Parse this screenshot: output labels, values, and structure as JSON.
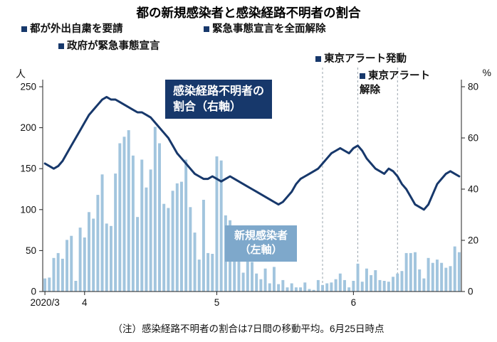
{
  "title": "都の新規感染者と感染経路不明者の割合",
  "note": "（注）感染経路不明者の割合は7日間の移動平均。6月25日時点",
  "annotations": [
    {
      "label": "都が外出自粛を要請"
    },
    {
      "label": "政府が緊急事態宣言"
    },
    {
      "label": "緊急事態宣言を全面解除"
    },
    {
      "label": "東京アラート発動"
    },
    {
      "label": "東京アラート解除"
    }
  ],
  "legend": {
    "line": [
      "感染経路不明者の",
      "割合（右軸）"
    ],
    "bar": [
      "新規感染者",
      "（左軸）"
    ]
  },
  "colors": {
    "bar": "#a2c5de",
    "line": "#17386b",
    "legend_line_bg": "#17386b",
    "legend_bar_bg": "#7ea8cb",
    "axis": "#222222",
    "event_line": "#9aa4ad",
    "bullet": "#17386b"
  },
  "chart_data": {
    "type": "combo",
    "title": "都の新規感染者と感染経路不明者の割合",
    "x_tick_labels": [
      "2020/3",
      "4",
      "5",
      "6"
    ],
    "x_tick_indices": [
      0,
      9,
      39,
      70
    ],
    "left_axis": {
      "unit": "人",
      "min": 0,
      "max": 250,
      "ticks": [
        0,
        50,
        100,
        150,
        200,
        250
      ]
    },
    "right_axis": {
      "unit": "%",
      "min": 0,
      "max": 80,
      "ticks": [
        0,
        20,
        40,
        60,
        80
      ]
    },
    "grid": false,
    "series": [
      {
        "name": "新規感染者（左軸）",
        "type": "bar",
        "axis": "left",
        "values": [
          16,
          17,
          41,
          47,
          40,
          63,
          68,
          13,
          78,
          66,
          97,
          89,
          118,
          143,
          83,
          80,
          144,
          181,
          189,
          197,
          166,
          91,
          161,
          127,
          149,
          201,
          181,
          107,
          102,
          123,
          132,
          134,
          161,
          103,
          72,
          39,
          112,
          47,
          46,
          165,
          160,
          93,
          87,
          57,
          38,
          23,
          39,
          36,
          22,
          15,
          28,
          10,
          30,
          9,
          14,
          5,
          10,
          5,
          5,
          11,
          3,
          2,
          14,
          8,
          10,
          11,
          15,
          22,
          14,
          5,
          13,
          34,
          12,
          28,
          20,
          26,
          14,
          13,
          12,
          18,
          22,
          25,
          47,
          47,
          48,
          27,
          16,
          41,
          35,
          39,
          35,
          29,
          31,
          55,
          48
        ]
      },
      {
        "name": "感染経路不明者の割合（右軸）",
        "type": "line",
        "axis": "right",
        "values": [
          50,
          49,
          48,
          49,
          51,
          54,
          57,
          60,
          63,
          66,
          69,
          71,
          73,
          75,
          76,
          75,
          75,
          74,
          73,
          72,
          71,
          70,
          70,
          69,
          68,
          66,
          64,
          62,
          60,
          57,
          54,
          52,
          50,
          48,
          46,
          45,
          44,
          44,
          45,
          44,
          43,
          44,
          45,
          44,
          43,
          42,
          41,
          40,
          39,
          38,
          37,
          36,
          35,
          34,
          35,
          37,
          39,
          42,
          44,
          45,
          46,
          47,
          48,
          50,
          52,
          54,
          55,
          56,
          55,
          54,
          56,
          57,
          55,
          52,
          50,
          48,
          47,
          46,
          48,
          47,
          45,
          42,
          40,
          37,
          34,
          33,
          32,
          34,
          38,
          42,
          44,
          46,
          47,
          46,
          45
        ]
      }
    ],
    "event_lines": [
      {
        "index": 63,
        "label": "緊急事態宣言を全面解除"
      },
      {
        "index": 71,
        "label": "東京アラート発動"
      },
      {
        "index": 80,
        "label": "東京アラート解除"
      }
    ]
  }
}
